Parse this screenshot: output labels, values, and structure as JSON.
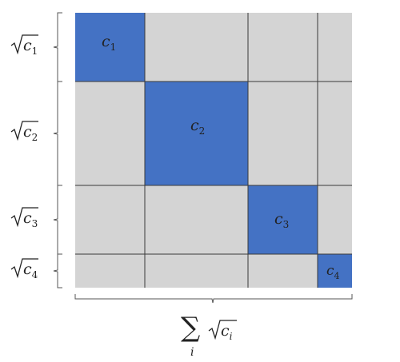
{
  "diagram": {
    "block_labels": [
      {
        "base": "c",
        "sub": "1"
      },
      {
        "base": "c",
        "sub": "2"
      },
      {
        "base": "c",
        "sub": "3"
      },
      {
        "base": "c",
        "sub": "4"
      }
    ],
    "row_labels": [
      {
        "base": "c",
        "sub": "1"
      },
      {
        "base": "c",
        "sub": "2"
      },
      {
        "base": "c",
        "sub": "3"
      },
      {
        "base": "c",
        "sub": "4"
      }
    ],
    "bottom_label": {
      "sum_symbol": "∑",
      "index": "i",
      "base": "c",
      "sub": "i"
    },
    "colors": {
      "grid_fill": "#d4d4d4",
      "grid_line": "#3a3a3a",
      "block_fill": "#4472c4",
      "bracket": "#555555"
    }
  }
}
